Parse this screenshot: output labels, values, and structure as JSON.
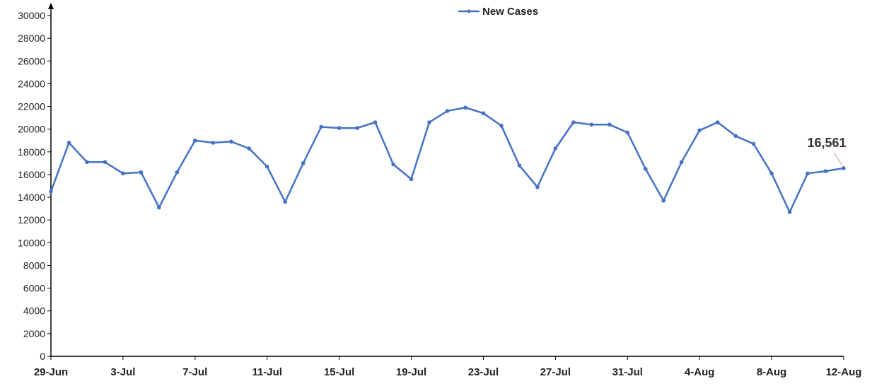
{
  "chart_data": {
    "type": "line",
    "title": "",
    "xlabel": "",
    "ylabel": "",
    "ylim": [
      0,
      30000
    ],
    "y_ticks": [
      0,
      2000,
      4000,
      6000,
      8000,
      10000,
      12000,
      14000,
      16000,
      18000,
      20000,
      22000,
      24000,
      26000,
      28000,
      30000
    ],
    "x_tick_labels": [
      "29-Jun",
      "3-Jul",
      "7-Jul",
      "11-Jul",
      "15-Jul",
      "19-Jul",
      "23-Jul",
      "27-Jul",
      "31-Jul",
      "4-Aug",
      "8-Aug",
      "12-Aug"
    ],
    "x_tick_every": 4,
    "grid": false,
    "legend_position": "top-center",
    "series": [
      {
        "name": "New Cases",
        "color": "#4472C4",
        "marker": "circle",
        "x": [
          "29-Jun",
          "30-Jun",
          "1-Jul",
          "2-Jul",
          "3-Jul",
          "4-Jul",
          "5-Jul",
          "6-Jul",
          "7-Jul",
          "8-Jul",
          "9-Jul",
          "10-Jul",
          "11-Jul",
          "12-Jul",
          "13-Jul",
          "14-Jul",
          "15-Jul",
          "16-Jul",
          "17-Jul",
          "18-Jul",
          "19-Jul",
          "20-Jul",
          "21-Jul",
          "22-Jul",
          "23-Jul",
          "24-Jul",
          "25-Jul",
          "26-Jul",
          "27-Jul",
          "28-Jul",
          "29-Jul",
          "30-Jul",
          "31-Jul",
          "1-Aug",
          "2-Aug",
          "3-Aug",
          "4-Aug",
          "5-Aug",
          "6-Aug",
          "7-Aug",
          "8-Aug",
          "9-Aug",
          "10-Aug",
          "11-Aug",
          "12-Aug"
        ],
        "values": [
          14500,
          18800,
          17100,
          17100,
          16100,
          16200,
          13100,
          16200,
          19000,
          18800,
          18900,
          18300,
          16700,
          13600,
          17000,
          20200,
          20100,
          20100,
          20600,
          16900,
          15600,
          20600,
          21600,
          21900,
          21400,
          20300,
          16800,
          14900,
          18300,
          20600,
          20400,
          20400,
          19700,
          16500,
          13700,
          17100,
          19900,
          20600,
          19400,
          18700,
          16100,
          12700,
          16100,
          16300,
          16561
        ]
      }
    ],
    "annotations": [
      {
        "text": "16,561",
        "point": "12-Aug",
        "value": 16561
      }
    ]
  }
}
